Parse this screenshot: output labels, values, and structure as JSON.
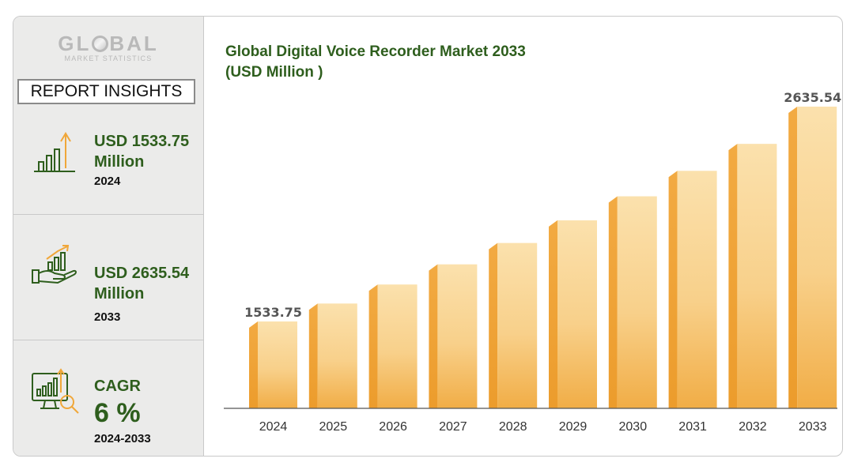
{
  "logo": {
    "main_pre": "GL",
    "main_post": "BAL",
    "sub": "MARKET STATISTICS"
  },
  "sidebar": {
    "heading": "REPORT INSIGHTS",
    "kpis": [
      {
        "value": "USD 1533.75",
        "unit": "Million",
        "year": "2024",
        "icon": "bar-chart-growth-icon"
      },
      {
        "value": "USD 2635.54",
        "unit": "Million",
        "year": "2033",
        "icon": "hand-with-chart-icon"
      },
      {
        "value": "CAGR",
        "big": "6 %",
        "year": "2024-2033",
        "icon": "monitor-chart-magnifier-icon"
      }
    ]
  },
  "colors": {
    "accent_green": "#2e5e1d",
    "bar_light": "#f8d9a0",
    "bar_dark": "#f0a73a"
  },
  "chart_data": {
    "type": "bar",
    "title": "Global Digital Voice Recorder Market 2033 (USD Million )",
    "categories": [
      "2024",
      "2025",
      "2026",
      "2027",
      "2028",
      "2029",
      "2030",
      "2031",
      "2032",
      "2033"
    ],
    "values": [
      1533.75,
      1625.78,
      1723.32,
      1826.72,
      1936.32,
      2052.5,
      2175.65,
      2306.19,
      2444.56,
      2635.54
    ],
    "data_labels": {
      "2024": "1533.75",
      "2033": "2635.54"
    },
    "grid": false
  }
}
